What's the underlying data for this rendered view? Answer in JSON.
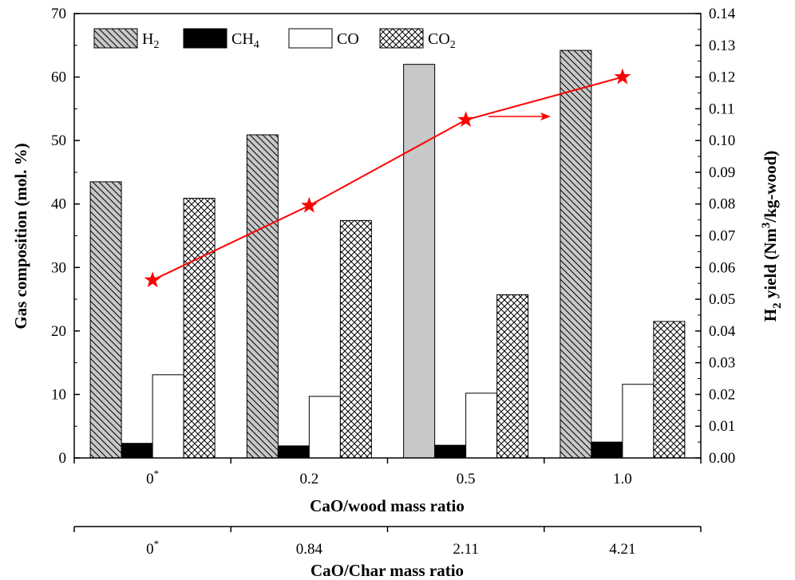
{
  "chart_data": {
    "type": "bar",
    "categories": [
      "0*",
      "0.2",
      "0.5",
      "1.0"
    ],
    "xlabel": "CaO/wood mass ratio",
    "secondary_x": {
      "label": "CaO/Char mass ratio",
      "ticks": [
        "0*",
        "0.84",
        "2.11",
        "4.21"
      ]
    },
    "ylabel": "Gas composition (mol. %)",
    "ylim": [
      0,
      70
    ],
    "yticks": [
      0,
      10,
      20,
      30,
      40,
      50,
      60,
      70
    ],
    "y2label": "H2 yield (Nm3/kg-wood)",
    "y2label_parts": {
      "main": "H",
      "sub": "2",
      "mid": " yield (Nm",
      "sup": "3",
      "end": "/kg-wood)"
    },
    "y2lim": [
      0,
      0.14
    ],
    "y2ticks": [
      "0.00",
      "0.01",
      "0.02",
      "0.03",
      "0.04",
      "0.05",
      "0.06",
      "0.07",
      "0.08",
      "0.09",
      "0.10",
      "0.11",
      "0.12",
      "0.13",
      "0.14"
    ],
    "series": [
      {
        "name": "H2",
        "base": "H",
        "sub": "2",
        "color": "#c8c8c8",
        "pattern": "diag",
        "values": [
          43.5,
          50.9,
          62.0,
          64.2
        ]
      },
      {
        "name": "CH4",
        "base": "CH",
        "sub": "4",
        "color": "#000000",
        "pattern": "solid",
        "values": [
          2.3,
          1.9,
          2.0,
          2.5
        ]
      },
      {
        "name": "CO",
        "base": "CO",
        "sub": "",
        "color": "#ffffff",
        "pattern": "none",
        "values": [
          13.1,
          9.7,
          10.2,
          11.6
        ]
      },
      {
        "name": "CO2",
        "base": "CO",
        "sub": "2",
        "color": "#ffffff",
        "pattern": "cross",
        "values": [
          40.9,
          37.4,
          25.7,
          21.5
        ]
      }
    ],
    "line_series": {
      "name": "H2 yield",
      "axis": "right",
      "color": "#ff0000",
      "marker": "star",
      "values": [
        0.056,
        0.0795,
        0.1065,
        0.12
      ]
    },
    "legend_placement": "top-left",
    "grid": false
  }
}
